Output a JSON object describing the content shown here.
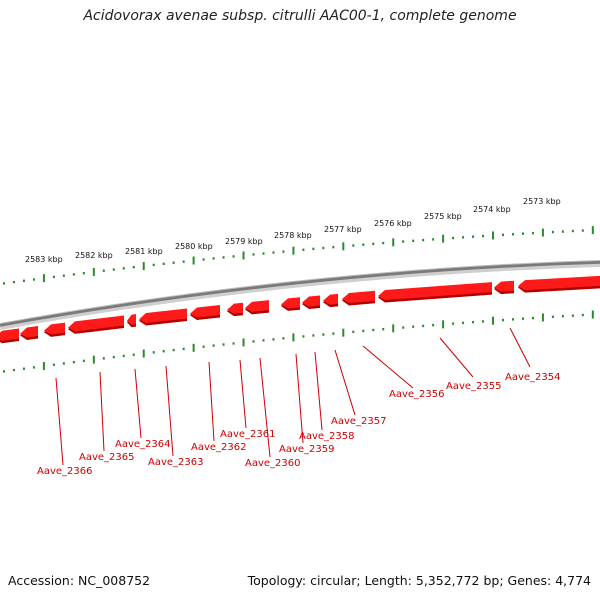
{
  "title": "Acidovorax avenae subsp. citrulli AAC00-1, complete genome",
  "footer": {
    "accession": "Accession: NC_008752",
    "summary": "Topology: circular; Length: 5,352,772 bp; Genes: 4,774"
  },
  "colors": {
    "gene": "#ff1a1a",
    "gene_dark": "#b00000",
    "label": "#cc0000",
    "ticks": "#2a8a2a",
    "backbone": "#7a7a7a"
  },
  "scale_labels": [
    "2583 kbp",
    "2582 kbp",
    "2581 kbp",
    "2580 kbp",
    "2579 kbp",
    "2578 kbp",
    "2577 kbp",
    "2576 kbp",
    "2575 kbp",
    "2574 kbp",
    "2573 kbp"
  ],
  "genes": [
    {
      "label": "Aave_2366"
    },
    {
      "label": "Aave_2365"
    },
    {
      "label": "Aave_2364"
    },
    {
      "label": "Aave_2363"
    },
    {
      "label": "Aave_2362"
    },
    {
      "label": "Aave_2361"
    },
    {
      "label": "Aave_2360"
    },
    {
      "label": "Aave_2359"
    },
    {
      "label": "Aave_2358"
    },
    {
      "label": "Aave_2357"
    },
    {
      "label": "Aave_2356"
    },
    {
      "label": "Aave_2355"
    },
    {
      "label": "Aave_2354"
    }
  ]
}
